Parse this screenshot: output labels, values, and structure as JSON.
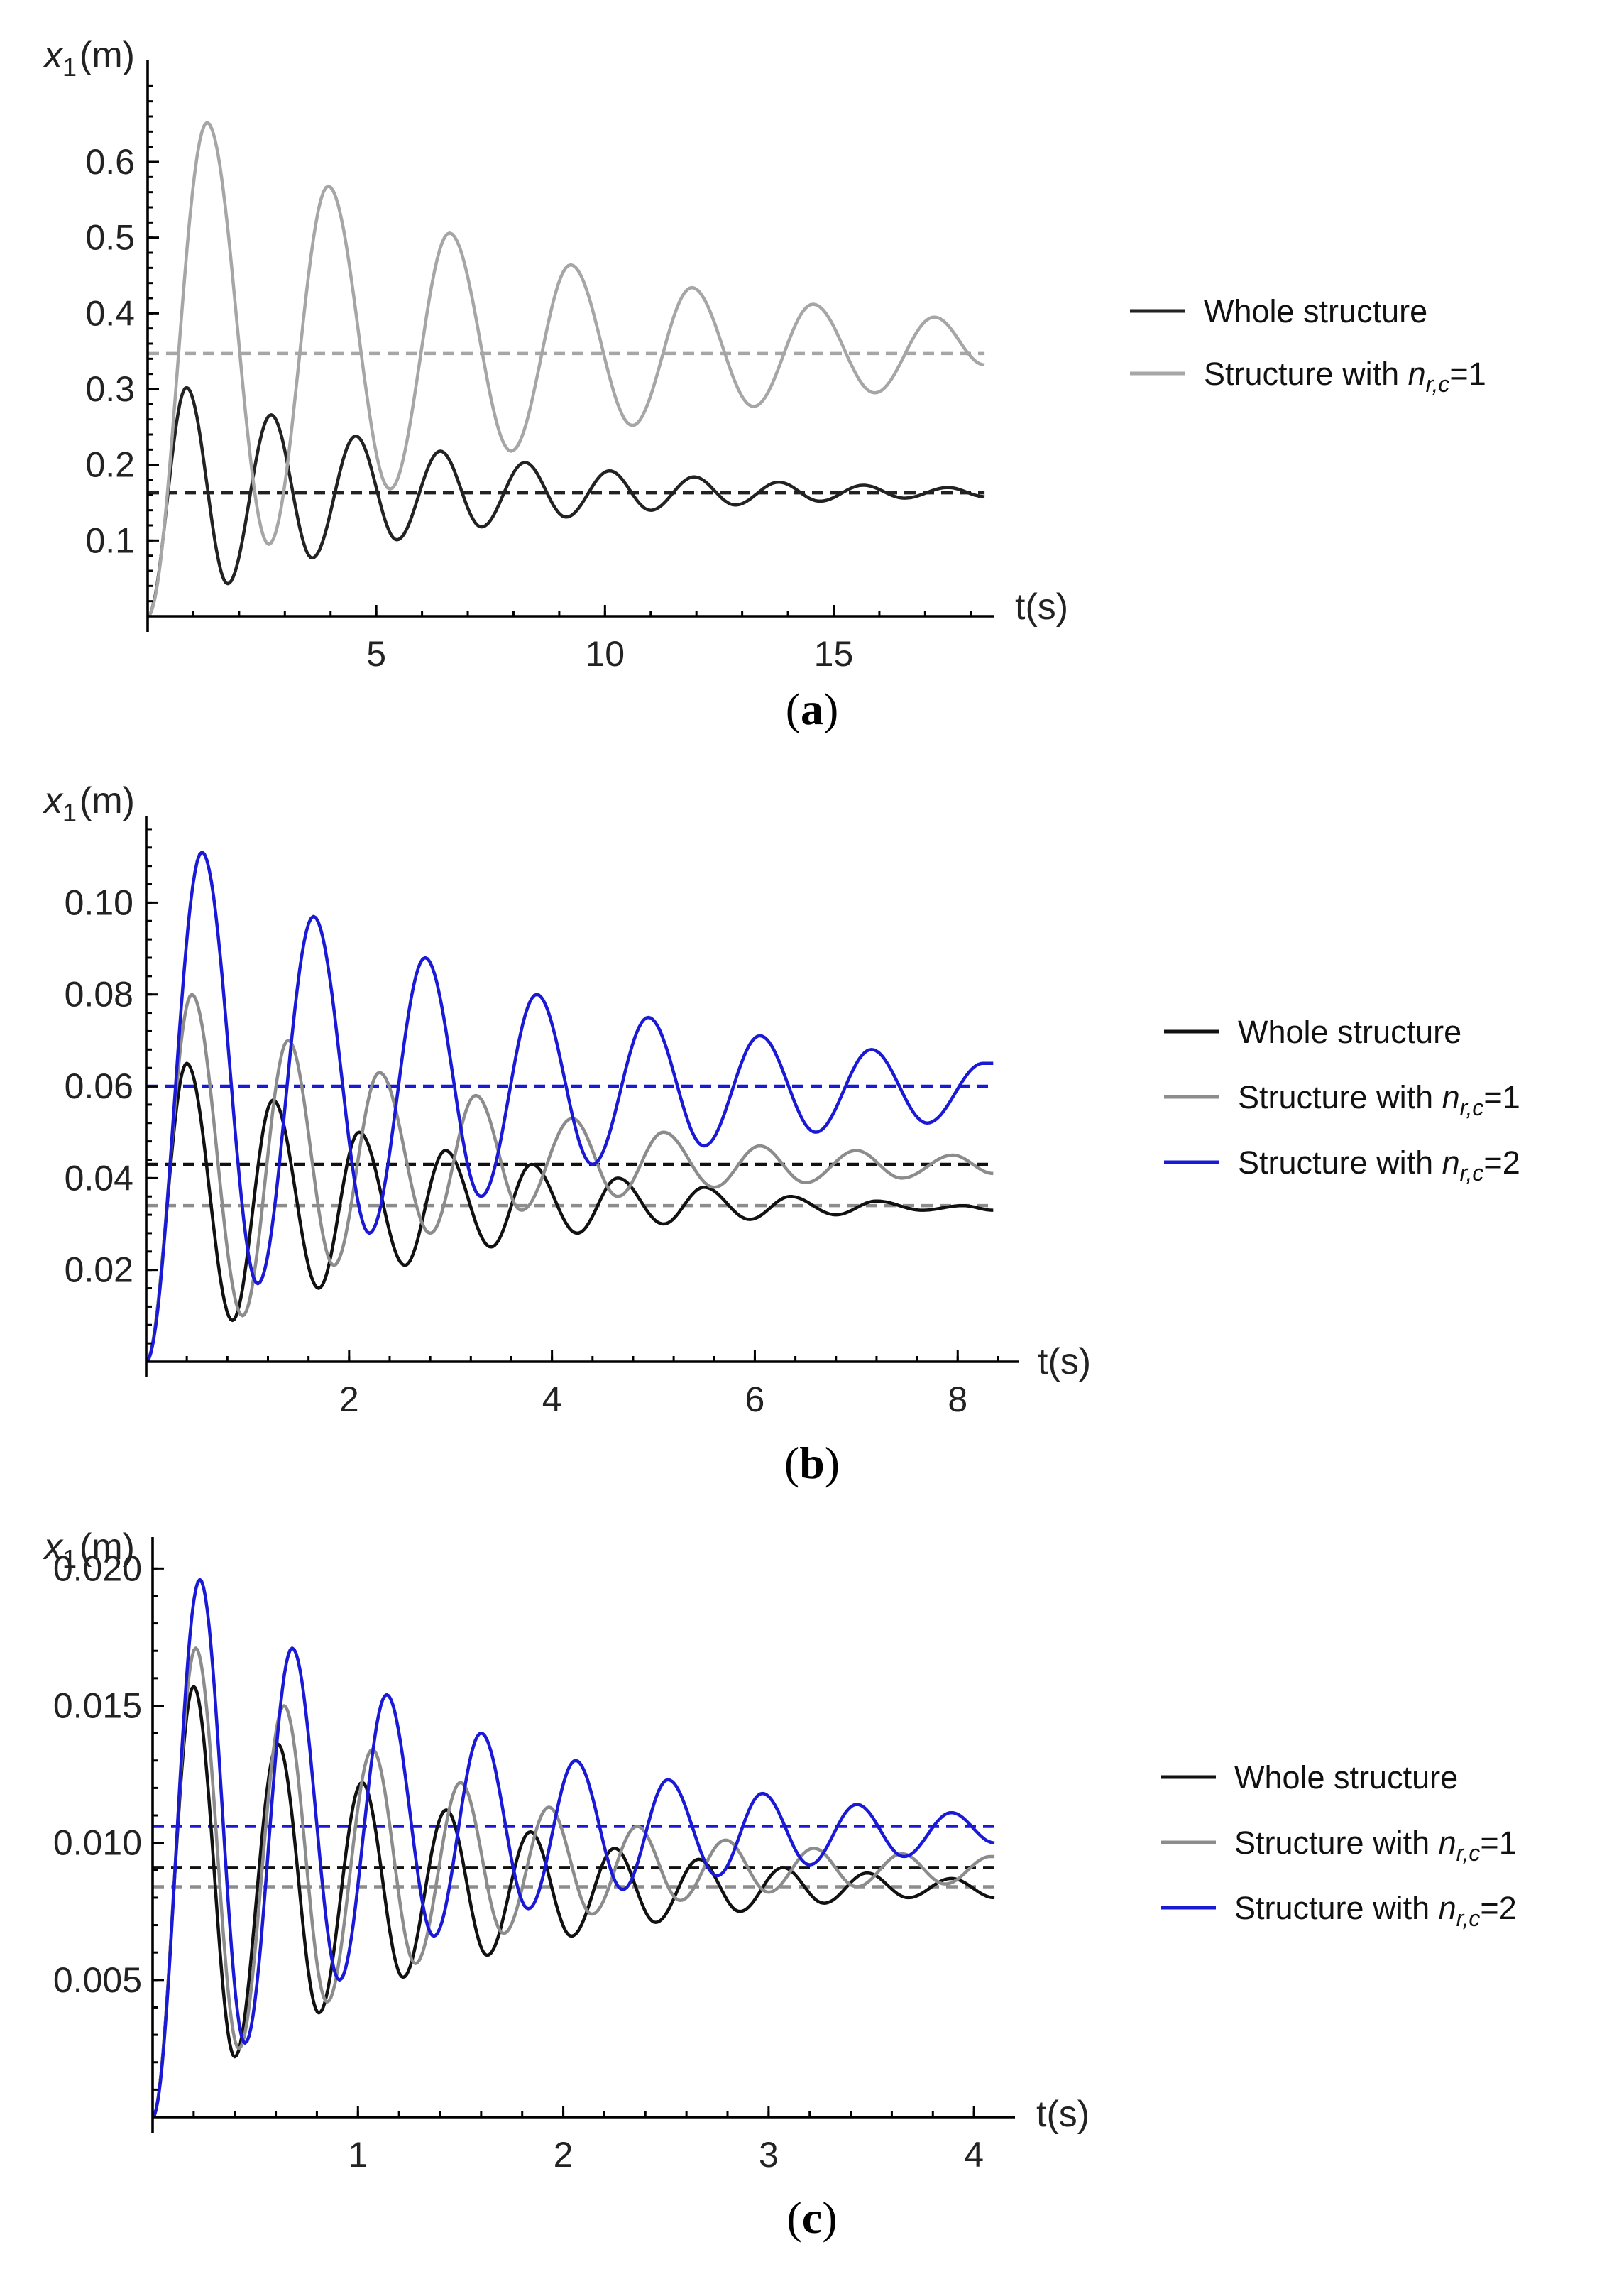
{
  "chart_data": [
    {
      "type": "line",
      "panel_label": "a",
      "ylabel_main": "x",
      "ylabel_sub": "1",
      "ylabel_unit": "(m)",
      "xlabel": "t(s)",
      "xlim": [
        0,
        18.5
      ],
      "ylim": [
        0,
        0.72
      ],
      "xticks": [
        5,
        10,
        15
      ],
      "xticklabels": [
        "5",
        "10",
        "15"
      ],
      "yticks": [
        0.1,
        0.2,
        0.3,
        0.4,
        0.5,
        0.6
      ],
      "yticklabels": [
        "0.1",
        "0.2",
        "0.3",
        "0.4",
        "0.5",
        "0.6"
      ],
      "t_end": 18.3,
      "series": [
        {
          "name": "Whole structure",
          "legend_main": "Whole structure",
          "color": "#222222",
          "equilibrium": 0.163,
          "peak_times": [
            0.85,
            2.7,
            4.55,
            6.4,
            8.25,
            10.1,
            11.95,
            13.8,
            15.65,
            17.5
          ],
          "peak_values": [
            0.302,
            0.266,
            0.238,
            0.218,
            0.203,
            0.192,
            0.184,
            0.177,
            0.173,
            0.17
          ],
          "trough_times": [
            1.75,
            3.6,
            5.45,
            7.3,
            9.15,
            11.0,
            12.85,
            14.7,
            16.55
          ],
          "trough_values": [
            0.043,
            0.077,
            0.101,
            0.118,
            0.131,
            0.14,
            0.147,
            0.152,
            0.156
          ],
          "end_value": 0.158
        },
        {
          "name": "Structure with n_r,c=1",
          "legend_main": "Structure with ",
          "legend_n": "n",
          "legend_sub": "r,c",
          "legend_eq": "=1",
          "color": "#a6a6a6",
          "equilibrium": 0.347,
          "peak_times": [
            1.3,
            3.95,
            6.6,
            9.25,
            11.9,
            14.55,
            17.2
          ],
          "peak_values": [
            0.652,
            0.568,
            0.506,
            0.464,
            0.434,
            0.412,
            0.395
          ],
          "trough_times": [
            2.65,
            5.3,
            7.95,
            10.6,
            13.25,
            15.9
          ],
          "trough_values": [
            0.095,
            0.168,
            0.218,
            0.252,
            0.277,
            0.295
          ],
          "end_value": 0.332
        }
      ],
      "equilibrium_lines": [
        {
          "name": "Whole structure",
          "value": 0.163,
          "color": "#222222"
        },
        {
          "name": "Structure with n_r,c=1",
          "value": 0.347,
          "color": "#a6a6a6"
        }
      ]
    },
    {
      "type": "line",
      "panel_label": "b",
      "ylabel_main": "x",
      "ylabel_sub": "1",
      "ylabel_unit": "(m)",
      "xlabel": "t(s)",
      "xlim": [
        0,
        8.6
      ],
      "ylim": [
        0,
        0.118
      ],
      "xticks": [
        2,
        4,
        6,
        8
      ],
      "xticklabels": [
        "2",
        "4",
        "6",
        "8"
      ],
      "yticks": [
        0.02,
        0.04,
        0.06,
        0.08,
        0.1
      ],
      "yticklabels": [
        "0.02",
        "0.04",
        "0.06",
        "0.08",
        "0.10"
      ],
      "t_end": 8.35,
      "series": [
        {
          "name": "Whole structure",
          "legend_main": "Whole structure",
          "color": "#111111",
          "equilibrium": 0.043,
          "peak_times": [
            0.4,
            1.25,
            2.1,
            2.95,
            3.8,
            4.65,
            5.5,
            6.35,
            7.2,
            8.05
          ],
          "peak_values": [
            0.065,
            0.057,
            0.05,
            0.046,
            0.043,
            0.04,
            0.038,
            0.036,
            0.035,
            0.034
          ],
          "trough_times": [
            0.85,
            1.7,
            2.55,
            3.4,
            4.25,
            5.1,
            5.95,
            6.8,
            7.65
          ],
          "trough_values": [
            0.009,
            0.016,
            0.021,
            0.025,
            0.028,
            0.03,
            0.031,
            0.032,
            0.033
          ],
          "end_value": 0.033
        },
        {
          "name": "Structure with n_r,c=1",
          "legend_main": "Structure with ",
          "legend_n": "n",
          "legend_sub": "r,c",
          "legend_eq": "=1",
          "color": "#8c8c8c",
          "equilibrium": 0.034,
          "peak_times": [
            0.45,
            1.4,
            2.3,
            3.25,
            4.2,
            5.1,
            6.05,
            7.0,
            7.95
          ],
          "peak_values": [
            0.08,
            0.07,
            0.063,
            0.058,
            0.053,
            0.05,
            0.047,
            0.046,
            0.045
          ],
          "trough_times": [
            0.95,
            1.85,
            2.8,
            3.7,
            4.65,
            5.6,
            6.5,
            7.45
          ],
          "trough_values": [
            0.01,
            0.021,
            0.028,
            0.033,
            0.036,
            0.038,
            0.039,
            0.04
          ],
          "end_value": 0.041
        },
        {
          "name": "Structure with n_r,c=2",
          "legend_main": "Structure with ",
          "legend_n": "n",
          "legend_sub": "r,c",
          "legend_eq": "=2",
          "color": "#1a1ad6",
          "equilibrium": 0.06,
          "peak_times": [
            0.55,
            1.65,
            2.75,
            3.85,
            4.95,
            6.05,
            7.15,
            8.25
          ],
          "peak_values": [
            0.111,
            0.097,
            0.088,
            0.08,
            0.075,
            0.071,
            0.068,
            0.065
          ],
          "trough_times": [
            1.1,
            2.2,
            3.3,
            4.4,
            5.5,
            6.6,
            7.7
          ],
          "trough_values": [
            0.017,
            0.028,
            0.036,
            0.043,
            0.047,
            0.05,
            0.052
          ],
          "end_value": 0.065
        }
      ],
      "equilibrium_lines": [
        {
          "name": "Whole structure",
          "value": 0.043,
          "color": "#111111"
        },
        {
          "name": "Structure with n_r,c=1",
          "value": 0.034,
          "color": "#8c8c8c"
        },
        {
          "name": "Structure with n_r,c=2",
          "value": 0.06,
          "color": "#1a1ad6"
        }
      ]
    },
    {
      "type": "line",
      "panel_label": "c",
      "ylabel_main": "x",
      "ylabel_sub": "1",
      "ylabel_unit": "(m)",
      "xlabel": "t(s)",
      "xlim": [
        0,
        4.2
      ],
      "ylim": [
        0,
        0.0205
      ],
      "xticks": [
        1,
        2,
        3,
        4
      ],
      "xticklabels": [
        "1",
        "2",
        "3",
        "4"
      ],
      "yticks": [
        0.005,
        0.01,
        0.015,
        0.02
      ],
      "yticklabels": [
        "0.005",
        "0.010",
        "0.015",
        "0.020"
      ],
      "t_end": 4.1,
      "series": [
        {
          "name": "Whole structure",
          "legend_main": "Whole structure",
          "color": "#111111",
          "equilibrium": 0.0091,
          "peak_times": [
            0.2,
            0.61,
            1.02,
            1.43,
            1.84,
            2.25,
            2.66,
            3.07,
            3.48,
            3.89
          ],
          "peak_values": [
            0.0157,
            0.0136,
            0.0122,
            0.0112,
            0.0104,
            0.0098,
            0.0094,
            0.0091,
            0.0089,
            0.0087
          ],
          "trough_times": [
            0.4,
            0.81,
            1.22,
            1.63,
            2.04,
            2.45,
            2.86,
            3.27,
            3.68
          ],
          "trough_values": [
            0.0022,
            0.0038,
            0.0051,
            0.0059,
            0.0066,
            0.0071,
            0.0075,
            0.0078,
            0.008
          ],
          "end_value": 0.008
        },
        {
          "name": "Structure with n_r,c=1",
          "legend_main": "Structure with ",
          "legend_n": "n",
          "legend_sub": "r,c",
          "legend_eq": "=1",
          "color": "#8c8c8c",
          "equilibrium": 0.0084,
          "peak_times": [
            0.21,
            0.64,
            1.07,
            1.5,
            1.93,
            2.36,
            2.79,
            3.22,
            3.65,
            4.08
          ],
          "peak_values": [
            0.0171,
            0.015,
            0.0134,
            0.0122,
            0.0113,
            0.0106,
            0.0101,
            0.0098,
            0.0096,
            0.0095
          ],
          "trough_times": [
            0.42,
            0.85,
            1.28,
            1.71,
            2.14,
            2.57,
            3.0,
            3.43,
            3.86
          ],
          "trough_values": [
            0.0025,
            0.0042,
            0.0056,
            0.0067,
            0.0074,
            0.0079,
            0.0082,
            0.0084,
            0.0085
          ],
          "end_value": 0.0095
        },
        {
          "name": "Structure with n_r,c=2",
          "legend_main": "Structure with ",
          "legend_n": "n",
          "legend_sub": "r,c",
          "legend_eq": "=2",
          "color": "#1a1ad6",
          "equilibrium": 0.0106,
          "peak_times": [
            0.23,
            0.68,
            1.14,
            1.6,
            2.06,
            2.51,
            2.97,
            3.43,
            3.89
          ],
          "peak_values": [
            0.0196,
            0.0171,
            0.0154,
            0.014,
            0.013,
            0.0123,
            0.0118,
            0.0114,
            0.0111
          ],
          "trough_times": [
            0.45,
            0.91,
            1.37,
            1.83,
            2.29,
            2.75,
            3.2,
            3.66
          ],
          "trough_values": [
            0.0027,
            0.005,
            0.0066,
            0.0076,
            0.0083,
            0.0088,
            0.0092,
            0.0095
          ],
          "end_value": 0.01
        }
      ],
      "equilibrium_lines": [
        {
          "name": "Whole structure",
          "value": 0.0091,
          "color": "#111111"
        },
        {
          "name": "Structure with n_r,c=1",
          "value": 0.0084,
          "color": "#8c8c8c"
        },
        {
          "name": "Structure with n_r,c=2",
          "value": 0.0106,
          "color": "#1a1ad6"
        }
      ]
    }
  ]
}
